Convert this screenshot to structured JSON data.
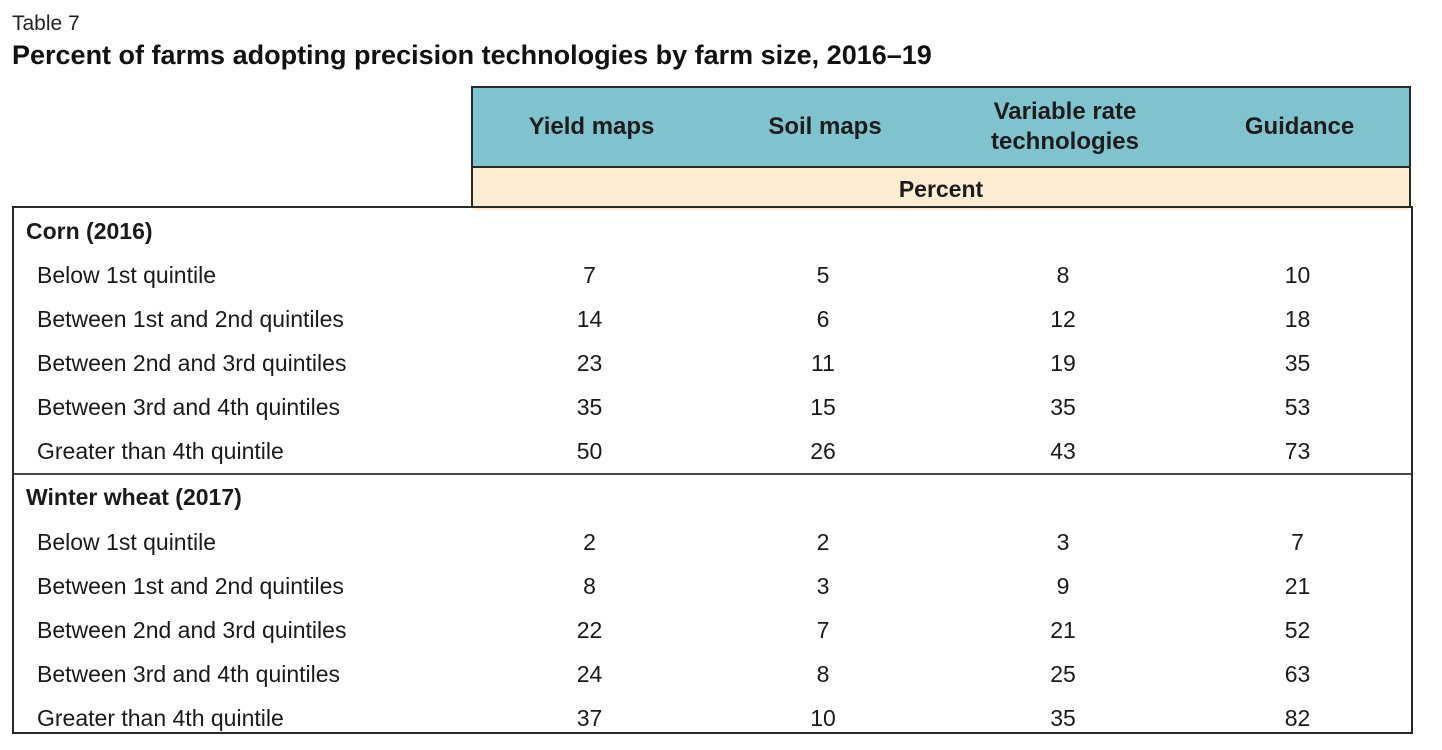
{
  "table_label": "Table 7",
  "title": "Percent of farms adopting precision technologies by farm size, 2016–19",
  "columns": [
    "Yield maps",
    "Soil maps",
    "Variable rate technologies",
    "Guidance"
  ],
  "unit_label": "Percent",
  "groups": [
    {
      "name": "Corn (2016)",
      "rows": [
        {
          "label": "Below 1st quintile",
          "values": [
            "7",
            "5",
            "8",
            "10"
          ]
        },
        {
          "label": "Between 1st and 2nd quintiles",
          "values": [
            "14",
            "6",
            "12",
            "18"
          ]
        },
        {
          "label": "Between 2nd and 3rd quintiles",
          "values": [
            "23",
            "11",
            "19",
            "35"
          ]
        },
        {
          "label": "Between 3rd and 4th quintiles",
          "values": [
            "35",
            "15",
            "35",
            "53"
          ]
        },
        {
          "label": "Greater than 4th quintile",
          "values": [
            "50",
            "26",
            "43",
            "73"
          ]
        }
      ]
    },
    {
      "name": "Winter wheat (2017)",
      "rows": [
        {
          "label": "Below 1st quintile",
          "values": [
            "2",
            "2",
            "3",
            "7"
          ]
        },
        {
          "label": "Between 1st and 2nd quintiles",
          "values": [
            "8",
            "3",
            "9",
            "21"
          ]
        },
        {
          "label": "Between 2nd and 3rd quintiles",
          "values": [
            "22",
            "7",
            "21",
            "52"
          ]
        },
        {
          "label": "Between 3rd and 4th quintiles",
          "values": [
            "24",
            "8",
            "25",
            "63"
          ]
        },
        {
          "label": "Greater than 4th quintile",
          "values": [
            "37",
            "10",
            "35",
            "82"
          ]
        }
      ]
    }
  ],
  "colors": {
    "header_bg": "#80c3cf",
    "unit_bg": "#fcecd1",
    "border": "#2a2a2a"
  }
}
